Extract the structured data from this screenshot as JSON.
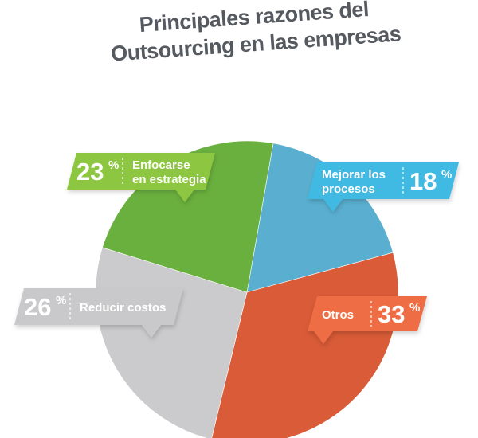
{
  "title": {
    "line1": "Principales razones del",
    "line2": "Outsourcing en las empresas"
  },
  "chart_data": {
    "type": "pie",
    "title": "Principales razones del Outsourcing en las empresas",
    "start_angle_deg": -80,
    "slices": [
      {
        "label": "Mejorar los procesos",
        "label_lines": [
          "Mejorar los",
          "procesos"
        ],
        "value": 18,
        "value_text": "18",
        "color": "#5aafd0",
        "label_color": "#41b9e3"
      },
      {
        "label": "Otros",
        "label_lines": [
          "Otros"
        ],
        "value": 33,
        "value_text": "33",
        "color": "#d95b37",
        "label_color": "#ef6d44"
      },
      {
        "label": "Reducir costos",
        "label_lines": [
          "Reducir costos"
        ],
        "value": 26,
        "value_text": "26",
        "color": "#cbcbcd",
        "label_color": "#c9c9cb"
      },
      {
        "label": "Enfocarse en estrategia",
        "label_lines": [
          "Enfocarse",
          "en estrategia"
        ],
        "value": 23,
        "value_text": "23",
        "color": "#6ab03e",
        "label_color": "#8dc641"
      }
    ],
    "percent_symbol": "%"
  }
}
